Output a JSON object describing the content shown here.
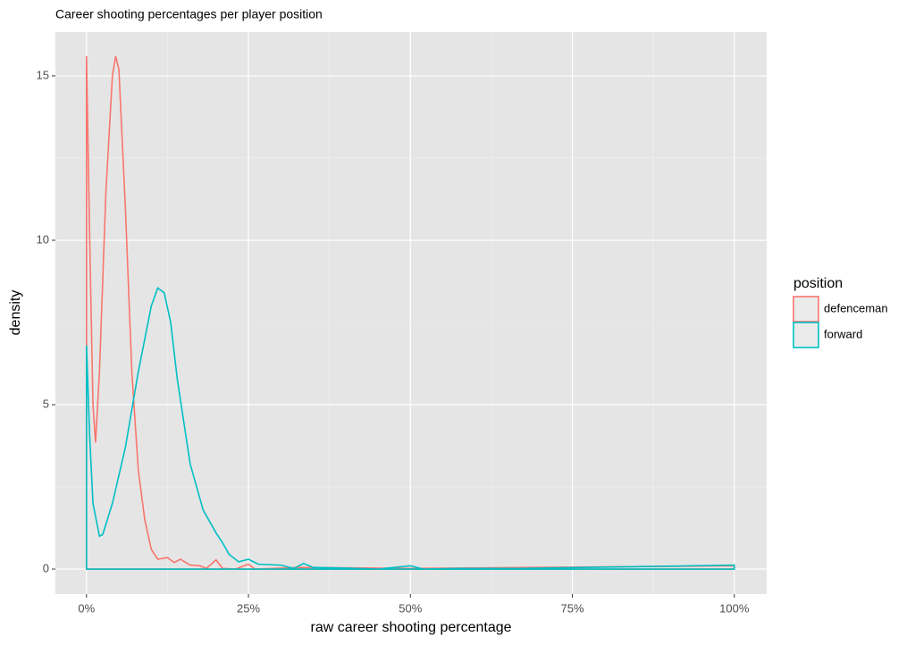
{
  "chart_data": {
    "type": "density",
    "title": "Career shooting percentages per player position",
    "x_label": "raw career shooting percentage",
    "y_label": "density",
    "legend_title": "position",
    "xlim": [
      -0.048,
      1.05
    ],
    "ylim": [
      -0.76,
      16.33
    ],
    "xticks": [
      {
        "value": 0,
        "label": "0%"
      },
      {
        "value": 0.25,
        "label": "25%"
      },
      {
        "value": 0.5,
        "label": "50%"
      },
      {
        "value": 0.75,
        "label": "75%"
      },
      {
        "value": 1,
        "label": "100%"
      }
    ],
    "yticks": [
      0,
      5,
      10,
      15
    ],
    "grid": true,
    "legend": "right",
    "series": [
      {
        "name": "defenceman",
        "color": "#F8766D",
        "x": [
          0,
          0,
          0.005,
          0.01,
          0.014,
          0.02,
          0.03,
          0.04,
          0.045,
          0.05,
          0.06,
          0.07,
          0.08,
          0.09,
          0.1,
          0.11,
          0.125,
          0.135,
          0.145,
          0.16,
          0.175,
          0.185,
          0.2,
          0.21,
          0.23,
          0.25,
          0.26,
          0.33,
          0.5,
          1,
          1
        ],
        "values": [
          0,
          15.6,
          10,
          5,
          3.85,
          6,
          11.5,
          15,
          15.6,
          15.2,
          11,
          6,
          3,
          1.5,
          0.6,
          0.3,
          0.35,
          0.2,
          0.3,
          0.12,
          0.1,
          0.02,
          0.28,
          0.02,
          0,
          0.15,
          0,
          0.05,
          0.02,
          0.1,
          0
        ]
      },
      {
        "name": "forward",
        "color": "#00BFC4",
        "x": [
          0,
          0,
          0.005,
          0.01,
          0.02,
          0.025,
          0.04,
          0.06,
          0.08,
          0.1,
          0.11,
          0.12,
          0.13,
          0.14,
          0.16,
          0.18,
          0.2,
          0.21,
          0.22,
          0.235,
          0.25,
          0.265,
          0.3,
          0.32,
          0.335,
          0.35,
          0.4,
          0.45,
          0.5,
          0.52,
          0.57,
          0.67,
          1,
          1
        ],
        "values": [
          0,
          6.8,
          4,
          2,
          1,
          1.05,
          2,
          3.7,
          6,
          8,
          8.55,
          8.4,
          7.5,
          5.8,
          3.2,
          1.8,
          1.1,
          0.8,
          0.45,
          0.22,
          0.3,
          0.15,
          0.12,
          0.02,
          0.17,
          0.05,
          0.03,
          0,
          0.1,
          0,
          0.02,
          0.02,
          0.12,
          0
        ]
      }
    ]
  }
}
